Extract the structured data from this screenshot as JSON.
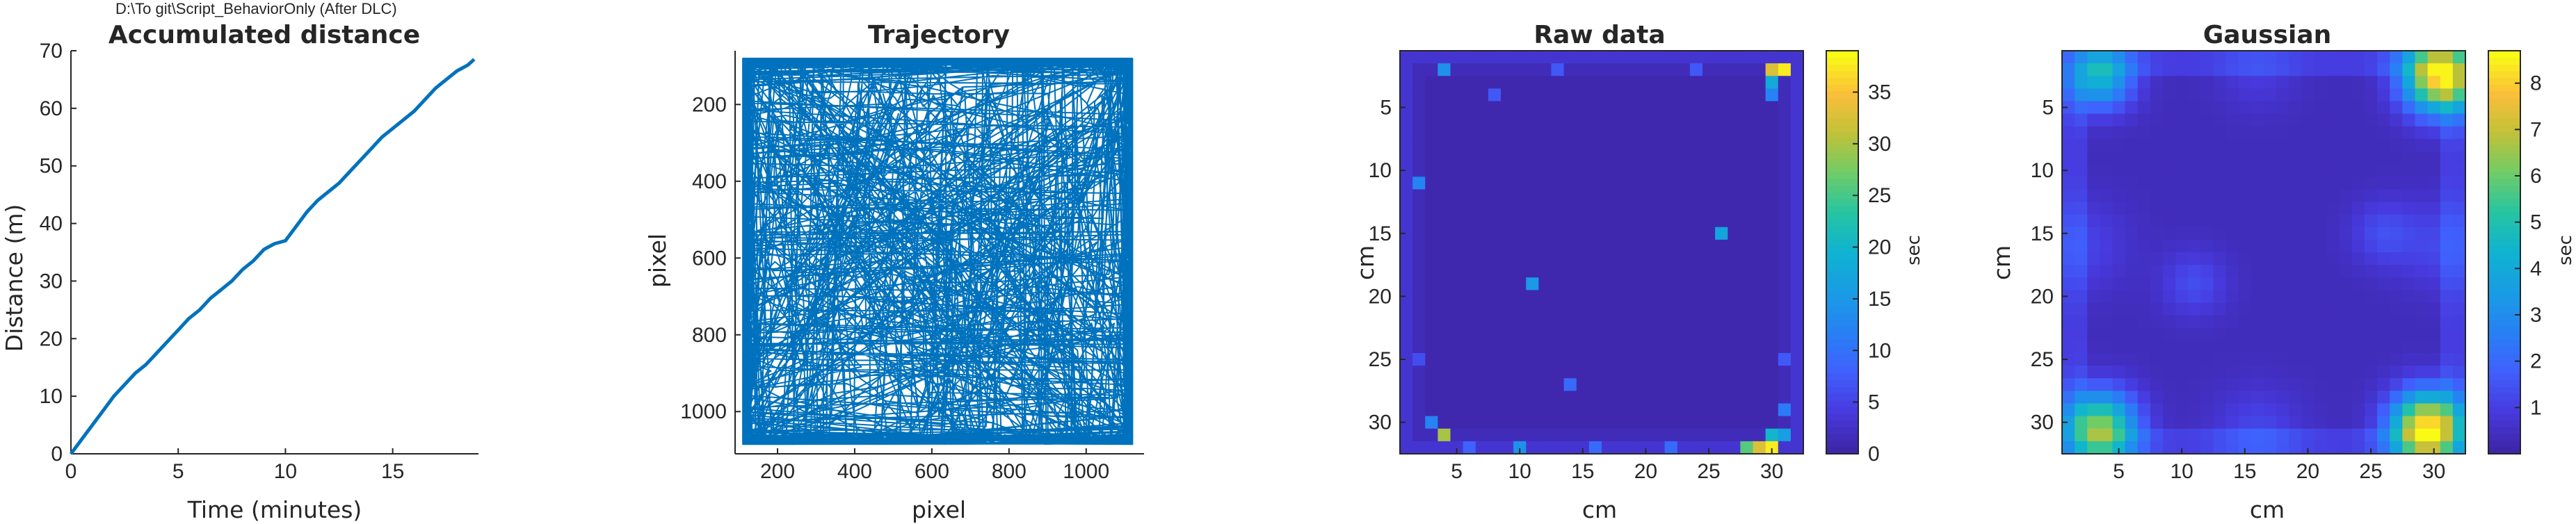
{
  "figure": {
    "path_label": "D:\\To git\\Script_BehaviorOnly (After DLC)"
  },
  "chart_data": [
    {
      "type": "line",
      "title": "Accumulated distance",
      "xlabel": "Time (minutes)",
      "ylabel": "Distance (m)",
      "xlim": [
        0,
        19
      ],
      "ylim": [
        0,
        70
      ],
      "xticks": [
        0,
        5,
        10,
        15
      ],
      "yticks": [
        0,
        10,
        20,
        30,
        40,
        50,
        60,
        70
      ],
      "grid": false,
      "color": "#0072bd",
      "series": [
        {
          "x": [
            0,
            0.5,
            1,
            1.5,
            2,
            2.5,
            3,
            3.5,
            4,
            4.5,
            5,
            5.5,
            6,
            6.5,
            7,
            7.5,
            8,
            8.5,
            9,
            9.5,
            10,
            10.5,
            11,
            11.5,
            12,
            12.5,
            13,
            13.5,
            14,
            14.5,
            15,
            15.5,
            16,
            16.5,
            17,
            17.5,
            18,
            18.5,
            18.8
          ],
          "y": [
            0,
            2.5,
            5,
            7.5,
            10,
            12,
            14,
            15.5,
            17.5,
            19.5,
            21.5,
            23.5,
            25,
            27,
            28.5,
            30,
            32,
            33.5,
            35.5,
            36.5,
            37,
            39.5,
            42,
            44,
            45.5,
            47,
            49,
            51,
            53,
            55,
            56.5,
            58,
            59.5,
            61.5,
            63.5,
            65,
            66.5,
            67.5,
            68.5
          ]
        }
      ]
    },
    {
      "type": "scatter",
      "title": "Trajectory",
      "xlabel": "pixel",
      "ylabel": "pixel",
      "xlim": [
        90,
        1150
      ],
      "ylim": [
        1110,
        60
      ],
      "xticks": [
        200,
        400,
        600,
        800,
        1000
      ],
      "yticks": [
        200,
        400,
        600,
        800,
        1000
      ],
      "y_reversed": true,
      "color": "#0072bd",
      "arena_bounds": {
        "x": [
          110,
          1120
        ],
        "y": [
          80,
          1085
        ]
      }
    },
    {
      "type": "heatmap",
      "title": "Raw data",
      "xlabel": "cm",
      "ylabel": "cm",
      "xticks": [
        5,
        10,
        15,
        20,
        25,
        30
      ],
      "yticks": [
        5,
        10,
        15,
        20,
        25,
        30
      ],
      "grid_size": 32,
      "colorbar": {
        "label": "sec",
        "min": 0,
        "max": 39,
        "ticks": [
          0,
          5,
          10,
          15,
          20,
          25,
          30,
          35
        ]
      },
      "colormap": "parula",
      "base_value": 0.4,
      "hotspots": [
        {
          "x": 4,
          "y": 2,
          "v": 14
        },
        {
          "x": 30,
          "y": 2,
          "v": 33
        },
        {
          "x": 31,
          "y": 2,
          "v": 38
        },
        {
          "x": 30,
          "y": 3,
          "v": 18
        },
        {
          "x": 30,
          "y": 4,
          "v": 12
        },
        {
          "x": 4,
          "y": 31,
          "v": 30
        },
        {
          "x": 3,
          "y": 30,
          "v": 12
        },
        {
          "x": 29,
          "y": 32,
          "v": 33
        },
        {
          "x": 30,
          "y": 32,
          "v": 38
        },
        {
          "x": 28,
          "y": 32,
          "v": 26
        },
        {
          "x": 30,
          "y": 31,
          "v": 20
        },
        {
          "x": 31,
          "y": 31,
          "v": 16
        },
        {
          "x": 10,
          "y": 32,
          "v": 14
        },
        {
          "x": 2,
          "y": 11,
          "v": 12
        },
        {
          "x": 26,
          "y": 15,
          "v": 17
        },
        {
          "x": 11,
          "y": 19,
          "v": 15
        },
        {
          "x": 14,
          "y": 27,
          "v": 9
        },
        {
          "x": 6,
          "y": 32,
          "v": 8
        },
        {
          "x": 16,
          "y": 32,
          "v": 9
        },
        {
          "x": 22,
          "y": 32,
          "v": 9
        },
        {
          "x": 31,
          "y": 29,
          "v": 11
        },
        {
          "x": 31,
          "y": 25,
          "v": 7
        },
        {
          "x": 2,
          "y": 25,
          "v": 6
        },
        {
          "x": 8,
          "y": 4,
          "v": 7
        },
        {
          "x": 13,
          "y": 2,
          "v": 7
        },
        {
          "x": 24,
          "y": 2,
          "v": 7
        }
      ]
    },
    {
      "type": "heatmap",
      "title": "Gaussian",
      "xlabel": "cm",
      "ylabel": "cm",
      "xticks": [
        5,
        10,
        15,
        20,
        25,
        30
      ],
      "yticks": [
        5,
        10,
        15,
        20,
        25,
        30
      ],
      "grid_size": 32,
      "colorbar": {
        "label": "sec",
        "min": 0,
        "max": 8.7,
        "ticks": [
          1,
          2,
          3,
          4,
          5,
          6,
          7,
          8
        ]
      },
      "colormap": "parula",
      "base_value": 0.3,
      "blobs": [
        {
          "x": 3.5,
          "y": 2.5,
          "amp": 4.2,
          "sigma": 1.8
        },
        {
          "x": 30.5,
          "y": 2.5,
          "amp": 8.2,
          "sigma": 2.0
        },
        {
          "x": 3.5,
          "y": 30.5,
          "amp": 6.2,
          "sigma": 2.0
        },
        {
          "x": 29.5,
          "y": 30.5,
          "amp": 8.4,
          "sigma": 2.0
        },
        {
          "x": 11,
          "y": 19,
          "amp": 1.0,
          "sigma": 1.8
        },
        {
          "x": 26,
          "y": 15,
          "amp": 1.0,
          "sigma": 1.8
        },
        {
          "x": 16,
          "y": 2,
          "amp": 0.6,
          "sigma": 2.2
        },
        {
          "x": 16,
          "y": 31,
          "amp": 0.9,
          "sigma": 2.5
        },
        {
          "x": 2,
          "y": 16,
          "amp": 0.8,
          "sigma": 2.5
        },
        {
          "x": 31,
          "y": 16,
          "amp": 0.9,
          "sigma": 2.5
        }
      ]
    }
  ]
}
